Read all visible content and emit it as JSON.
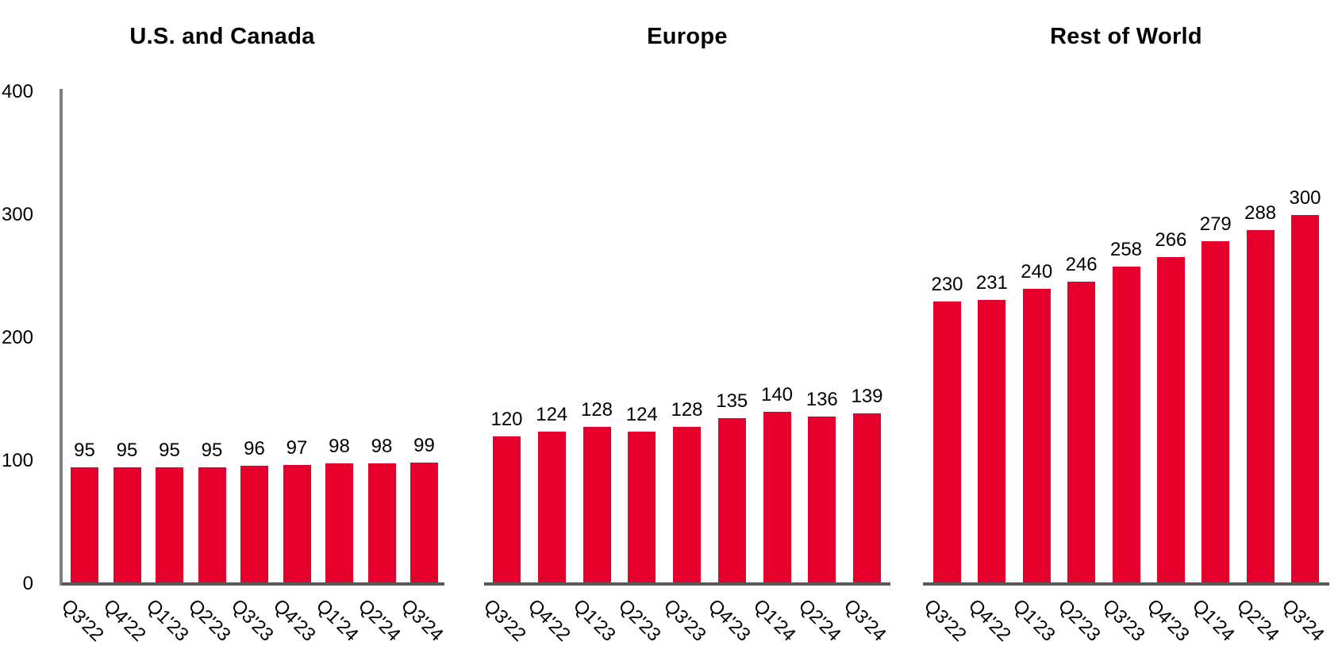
{
  "page": {
    "background": "#ffffff"
  },
  "style": {
    "bar_color": "#E4002B",
    "y_axis_line_color": "#7f7f7f",
    "baseline_color": "#595959",
    "text_color": "#000000"
  },
  "chart_data": [
    {
      "type": "bar",
      "title": "U.S. and Canada",
      "categories": [
        "Q3'22",
        "Q4'22",
        "Q1'23",
        "Q2'23",
        "Q3'23",
        "Q4'23",
        "Q1'24",
        "Q2'24",
        "Q3'24"
      ],
      "values": [
        95,
        95,
        95,
        95,
        96,
        97,
        98,
        98,
        99
      ],
      "xlabel": "",
      "ylabel": "",
      "ylim": [
        0,
        400
      ],
      "yticks": [
        0,
        100,
        200,
        300,
        400
      ],
      "show_y_axis": true,
      "grid": false,
      "legend": "none",
      "bar_color": "#E4002B"
    },
    {
      "type": "bar",
      "title": "Europe",
      "categories": [
        "Q3'22",
        "Q4'22",
        "Q1'23",
        "Q2'23",
        "Q3'23",
        "Q4'23",
        "Q1'24",
        "Q2'24",
        "Q3'24"
      ],
      "values": [
        120,
        124,
        128,
        124,
        128,
        135,
        140,
        136,
        139
      ],
      "xlabel": "",
      "ylabel": "",
      "ylim": [
        0,
        400
      ],
      "yticks": [
        0,
        100,
        200,
        300,
        400
      ],
      "show_y_axis": false,
      "grid": false,
      "legend": "none",
      "bar_color": "#E4002B"
    },
    {
      "type": "bar",
      "title": "Rest of World",
      "categories": [
        "Q3'22",
        "Q4'22",
        "Q1'23",
        "Q2'23",
        "Q3'23",
        "Q4'23",
        "Q1'24",
        "Q2'24",
        "Q3'24"
      ],
      "values": [
        230,
        231,
        240,
        246,
        258,
        266,
        279,
        288,
        300
      ],
      "xlabel": "",
      "ylabel": "",
      "ylim": [
        0,
        400
      ],
      "yticks": [
        0,
        100,
        200,
        300,
        400
      ],
      "show_y_axis": false,
      "grid": false,
      "legend": "none",
      "bar_color": "#E4002B"
    }
  ]
}
